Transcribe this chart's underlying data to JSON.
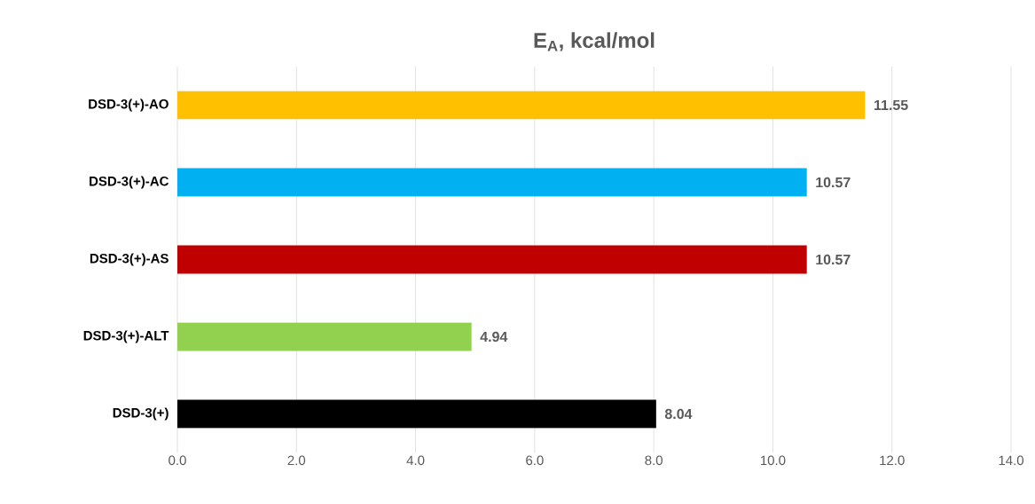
{
  "chart_data": {
    "type": "bar",
    "orientation": "horizontal",
    "title": "E$_{A}$, kcal/mol",
    "categories": [
      "DSD-3(+)-AO",
      "DSD-3(+)-AC",
      "DSD-3(+)-AS",
      "DSD-3(+)-ALT",
      "DSD-3(+)"
    ],
    "values": [
      11.55,
      10.57,
      10.57,
      4.94,
      8.04
    ],
    "colors": [
      "#ffc000",
      "#00b0f0",
      "#c00000",
      "#92d050",
      "#000000"
    ],
    "xlim": [
      0,
      14
    ],
    "xticks": [
      {
        "value": 0,
        "label": "0.0"
      },
      {
        "value": 2,
        "label": "2.0"
      },
      {
        "value": 4,
        "label": "4.0"
      },
      {
        "value": 6,
        "label": "6.0"
      },
      {
        "value": 8,
        "label": "8.0"
      },
      {
        "value": 10,
        "label": "10.0"
      },
      {
        "value": 12,
        "label": "12.0"
      },
      {
        "value": 14,
        "label": "14.0"
      }
    ],
    "grid": "x",
    "data_labels": true
  }
}
